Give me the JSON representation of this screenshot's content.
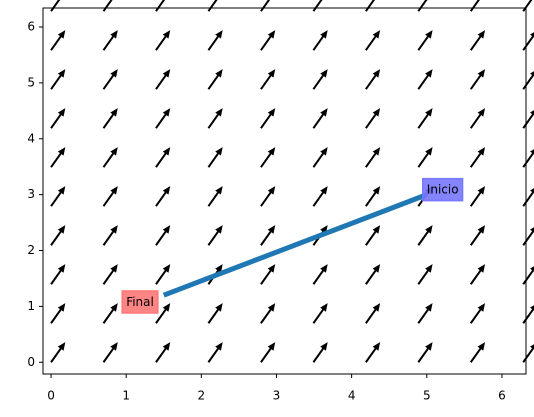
{
  "chart_data": {
    "type": "quiver",
    "x": [
      0,
      0.698,
      1.396,
      2.094,
      2.793,
      3.491,
      4.189,
      4.887,
      5.585,
      6.283
    ],
    "y": [
      0,
      0.698,
      1.396,
      2.094,
      2.793,
      3.491,
      4.189,
      4.887,
      5.585,
      6.283
    ],
    "u": 0.19,
    "v": 0.36,
    "color": "#000000",
    "path": {
      "x": [
        5,
        1.5
      ],
      "y": [
        3,
        1.2
      ],
      "color": "#1f77b4"
    },
    "annotations": [
      {
        "text": "Inicio",
        "x": 5,
        "y": 3.08,
        "color": "#7777ff"
      },
      {
        "text": "Final",
        "x": 1,
        "y": 1.07,
        "color": "#ff7777"
      }
    ],
    "xlim": [
      -0.107,
      6.32
    ],
    "ylim": [
      -0.21,
      6.34
    ],
    "xticks": [
      0,
      1,
      2,
      3,
      4,
      5,
      6
    ],
    "yticks": [
      0,
      1,
      2,
      3,
      4,
      5,
      6
    ]
  }
}
